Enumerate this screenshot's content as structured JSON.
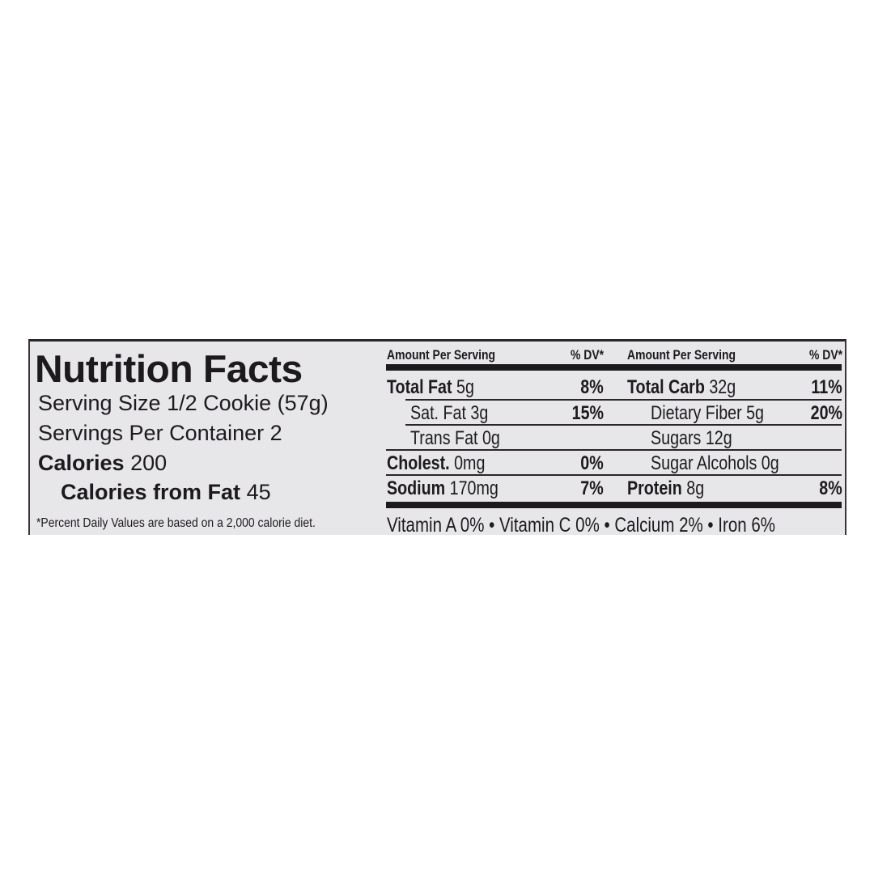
{
  "label": {
    "title": "Nutrition Facts",
    "serving_size": "Serving Size 1/2 Cookie (57g)",
    "servings_per_container": "Servings Per Container 2",
    "calories_label": "Calories",
    "calories_value": "200",
    "calories_fat_label": "Calories from Fat",
    "calories_fat_value": "45",
    "footnote": "*Percent Daily Values are based on a 2,000 calorie diet.",
    "header_amount": "Amount Per Serving",
    "header_dv": "% DV*",
    "left_rows": [
      {
        "name": "Total Fat",
        "amount": "5g",
        "dv": "8%"
      },
      {
        "name": "Sat. Fat 3g",
        "dv": "15%"
      },
      {
        "name": "Trans Fat 0g"
      },
      {
        "name": "Cholest.",
        "amount": "0mg",
        "dv": "0%"
      },
      {
        "name": "Sodium",
        "amount": "170mg",
        "dv": "7%"
      }
    ],
    "right_rows": [
      {
        "name": "Total Carb",
        "amount": "32g",
        "dv": "11%"
      },
      {
        "name": "Dietary Fiber 5g",
        "dv": "20%"
      },
      {
        "name": "Sugars 12g"
      },
      {
        "name": "Sugar Alcohols 0g"
      },
      {
        "name": "Protein",
        "amount": "8g",
        "dv": "8%"
      }
    ],
    "vitamins": "Vitamin A 0% • Vitamin C 0% • Calcium 2% • Iron 6%"
  }
}
